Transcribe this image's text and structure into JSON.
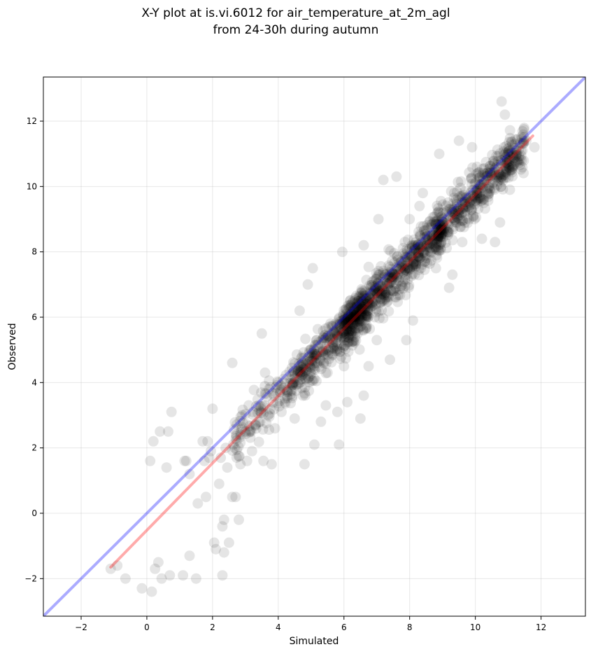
{
  "chart_data": {
    "type": "scatter",
    "title_lines": [
      "X-Y plot at is.vi.6012 for air_temperature_at_2m_agl",
      "from 24-30h during autumn"
    ],
    "xlabel": "Simulated",
    "ylabel": "Observed",
    "xlim": [
      -3.15,
      13.35
    ],
    "ylim": [
      -3.15,
      13.35
    ],
    "xticks": [
      -2,
      0,
      2,
      4,
      6,
      8,
      10,
      12
    ],
    "yticks": [
      -2,
      0,
      2,
      4,
      6,
      8,
      10,
      12
    ],
    "xtick_labels": [
      "−2",
      "0",
      "2",
      "4",
      "6",
      "8",
      "10",
      "12"
    ],
    "ytick_labels": [
      "−2",
      "0",
      "2",
      "4",
      "6",
      "8",
      "10",
      "12"
    ],
    "grid": true,
    "legend": "none",
    "point_color": "#000000",
    "point_alpha": 0.1,
    "points": [
      [
        -1.1,
        -1.7
      ],
      [
        -0.9,
        -1.6
      ],
      [
        -0.65,
        -2.0
      ],
      [
        -0.15,
        -2.3
      ],
      [
        0.1,
        1.6
      ],
      [
        0.15,
        -2.4
      ],
      [
        0.2,
        2.2
      ],
      [
        0.25,
        -1.7
      ],
      [
        0.35,
        -1.5
      ],
      [
        0.4,
        2.5
      ],
      [
        0.45,
        -2.0
      ],
      [
        0.6,
        1.4
      ],
      [
        0.65,
        2.5
      ],
      [
        0.7,
        -1.9
      ],
      [
        0.75,
        3.1
      ],
      [
        1.1,
        -1.9
      ],
      [
        1.15,
        1.6
      ],
      [
        1.2,
        1.6
      ],
      [
        1.3,
        -1.3
      ],
      [
        1.3,
        1.2
      ],
      [
        1.5,
        -2.0
      ],
      [
        1.55,
        0.3
      ],
      [
        1.7,
        2.2
      ],
      [
        1.75,
        1.6
      ],
      [
        1.8,
        0.5
      ],
      [
        1.85,
        2.2
      ],
      [
        1.9,
        1.7
      ],
      [
        1.95,
        1.9
      ],
      [
        2.0,
        3.2
      ],
      [
        2.05,
        -0.9
      ],
      [
        2.1,
        -1.1
      ],
      [
        2.2,
        0.9
      ],
      [
        2.25,
        1.7
      ],
      [
        2.3,
        -1.9
      ],
      [
        2.3,
        -0.4
      ],
      [
        2.35,
        -1.2
      ],
      [
        2.35,
        -0.2
      ],
      [
        2.4,
        2.0
      ],
      [
        2.45,
        1.4
      ],
      [
        2.5,
        -0.9
      ],
      [
        2.6,
        0.5
      ],
      [
        2.6,
        4.6
      ],
      [
        2.7,
        0.5
      ],
      [
        2.8,
        -0.2
      ],
      [
        2.85,
        1.5
      ],
      [
        2.9,
        3.0
      ],
      [
        3.0,
        2.5
      ],
      [
        3.05,
        1.6
      ],
      [
        3.1,
        3.3
      ],
      [
        3.2,
        1.9
      ],
      [
        3.3,
        2.7
      ],
      [
        3.4,
        3.3
      ],
      [
        3.45,
        2.8
      ],
      [
        3.5,
        5.5
      ],
      [
        3.55,
        1.6
      ],
      [
        3.6,
        4.3
      ],
      [
        3.8,
        1.5
      ],
      [
        3.9,
        2.6
      ],
      [
        4.2,
        3.4
      ],
      [
        4.5,
        2.9
      ],
      [
        4.65,
        6.2
      ],
      [
        4.75,
        3.6
      ],
      [
        4.8,
        1.5
      ],
      [
        4.9,
        7.0
      ],
      [
        5.05,
        7.5
      ],
      [
        5.1,
        2.1
      ],
      [
        5.3,
        2.8
      ],
      [
        5.45,
        3.3
      ],
      [
        5.5,
        4.3
      ],
      [
        5.8,
        3.1
      ],
      [
        5.85,
        2.1
      ],
      [
        5.95,
        8.0
      ],
      [
        6.0,
        4.5
      ],
      [
        6.1,
        3.4
      ],
      [
        6.3,
        6.0
      ],
      [
        6.5,
        2.9
      ],
      [
        6.6,
        3.6
      ],
      [
        6.6,
        8.2
      ],
      [
        6.75,
        4.5
      ],
      [
        7.0,
        5.3
      ],
      [
        7.05,
        9.0
      ],
      [
        7.2,
        10.2
      ],
      [
        7.4,
        4.7
      ],
      [
        7.6,
        10.3
      ],
      [
        7.9,
        5.3
      ],
      [
        8.0,
        9.0
      ],
      [
        8.1,
        5.9
      ],
      [
        8.3,
        9.4
      ],
      [
        8.4,
        9.8
      ],
      [
        8.8,
        7.5
      ],
      [
        8.9,
        11.0
      ],
      [
        9.2,
        6.9
      ],
      [
        9.3,
        7.3
      ],
      [
        9.5,
        11.4
      ],
      [
        9.6,
        8.3
      ],
      [
        9.9,
        11.2
      ],
      [
        10.2,
        8.4
      ],
      [
        10.6,
        8.3
      ],
      [
        10.75,
        8.9
      ],
      [
        10.8,
        12.6
      ],
      [
        10.9,
        12.2
      ],
      [
        11.05,
        9.9
      ],
      [
        11.2,
        11.3
      ],
      [
        11.55,
        11.4
      ],
      [
        11.8,
        11.2
      ]
    ],
    "cluster_points": 1400,
    "lines": [
      {
        "color": "#0000ff",
        "alpha": 0.33,
        "x": [
          -3.15,
          13.35
        ],
        "y": [
          -3.15,
          13.35
        ]
      },
      {
        "color": "#ff0000",
        "alpha": 0.33,
        "x": [
          -1.1,
          11.75
        ],
        "y": [
          -1.65,
          11.55
        ]
      }
    ]
  }
}
